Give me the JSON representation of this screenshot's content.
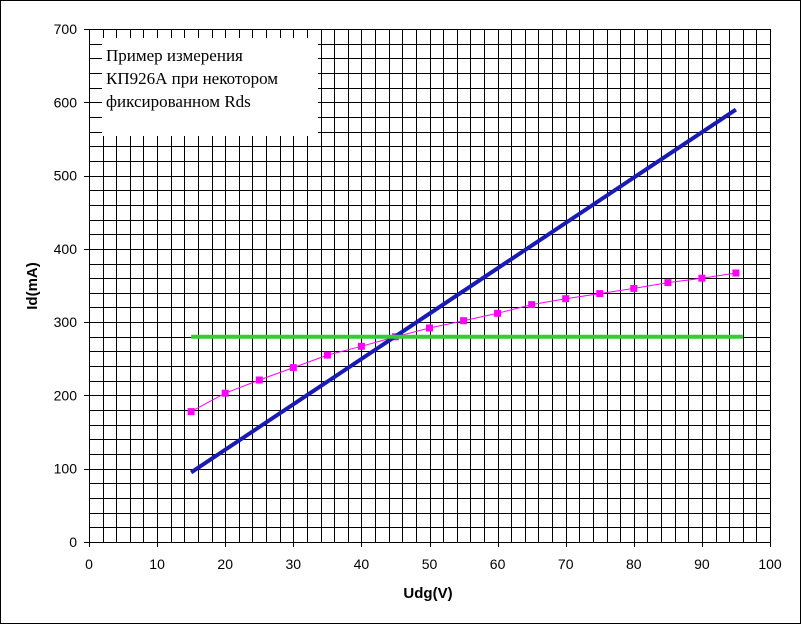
{
  "chart_data": {
    "type": "line",
    "title": "",
    "xlabel": "Udg(V)",
    "ylabel": "Id(mA)",
    "xlim": [
      0,
      100
    ],
    "ylim": [
      0,
      700
    ],
    "x_major_step": 10,
    "y_major_step": 100,
    "x_grid_step": 2,
    "y_grid_step": 20,
    "grid": true,
    "legend": "none",
    "xticks": [
      "0",
      "10",
      "20",
      "30",
      "40",
      "50",
      "60",
      "70",
      "80",
      "90",
      "100"
    ],
    "yticks": [
      "0",
      "100",
      "200",
      "300",
      "400",
      "500",
      "600",
      "700"
    ],
    "annotation": [
      "Пример измерения",
      "КП926А при некотором",
      "фиксированном Rds"
    ],
    "series": [
      {
        "kind": "measured",
        "color": "#ff00ff",
        "markers": true,
        "x": [
          15,
          20,
          25,
          30,
          35,
          40,
          45,
          50,
          55,
          60,
          65,
          70,
          75,
          80,
          85,
          90,
          95
        ],
        "y": [
          178,
          203,
          221,
          238,
          255,
          267,
          280,
          292,
          302,
          312,
          324,
          332,
          339,
          346,
          354,
          360,
          367
        ]
      },
      {
        "kind": "line",
        "color": "#1a1ab4",
        "markers": false,
        "x": [
          15,
          95
        ],
        "y": [
          95,
          590
        ]
      },
      {
        "kind": "line",
        "color": "#33cc33",
        "markers": false,
        "x": [
          15,
          96
        ],
        "y": [
          280,
          280
        ]
      }
    ]
  }
}
